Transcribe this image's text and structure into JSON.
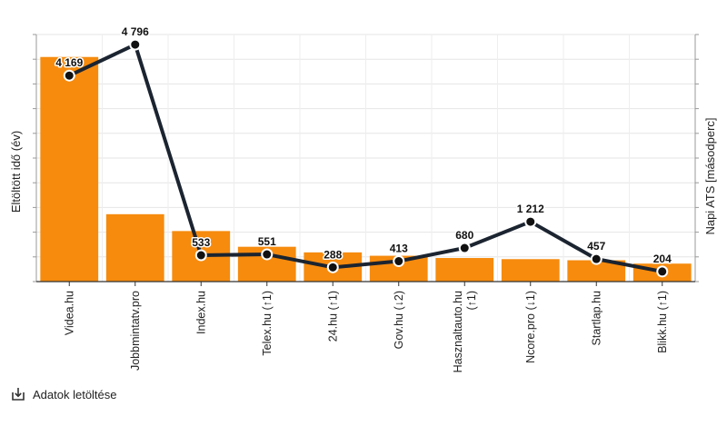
{
  "chart_data": {
    "type": "bar",
    "categories": [
      "Videa.hu",
      "Jobbmintatv.pro",
      "Index.hu",
      "Telex.hu (↑1)",
      "24.hu (↑1)",
      "Gov.hu (↓2)",
      "Hasznaltauto.hu (↑1)",
      "Ncore.pro (↓1)",
      "Startlap.hu",
      "Blikk.hu (↑1)"
    ],
    "category_lines": [
      [
        "Videa.hu"
      ],
      [
        "Jobbmintatv.pro"
      ],
      [
        "Index.hu"
      ],
      [
        "Telex.hu (↑1)"
      ],
      [
        "24.hu (↑1)"
      ],
      [
        "Gov.hu (↓2)"
      ],
      [
        "Hasznaltauto.hu",
        "(↑1)"
      ],
      [
        "Ncore.pro (↓1)"
      ],
      [
        "Startlap.hu"
      ],
      [
        "Blikk.hu (↑1)"
      ]
    ],
    "series": [
      {
        "type": "bar",
        "axis": "left",
        "color": "#f68b0e",
        "values": [
          100,
          30,
          22.5,
          15.5,
          13,
          11.5,
          10.5,
          10,
          9.5,
          8
        ]
      },
      {
        "type": "line",
        "axis": "right",
        "color": "#1b2430",
        "values": [
          4169,
          4796,
          533,
          551,
          288,
          413,
          680,
          1212,
          457,
          204
        ],
        "labels": [
          "4 169",
          "4 796",
          "533",
          "551",
          "288",
          "413",
          "680",
          "1 212",
          "457",
          "204"
        ]
      }
    ],
    "ylabel_left": "Eltöltött idő (év)",
    "ylabel_right": "Napi ATS [másodperc]",
    "ylim_left": [
      0,
      110
    ],
    "ylim_right": [
      0,
      5000
    ],
    "grid": true,
    "left_ticks_visible": false,
    "right_ticks_visible": false
  },
  "download": {
    "label": "Adatok letöltése",
    "icon": "download-icon"
  }
}
